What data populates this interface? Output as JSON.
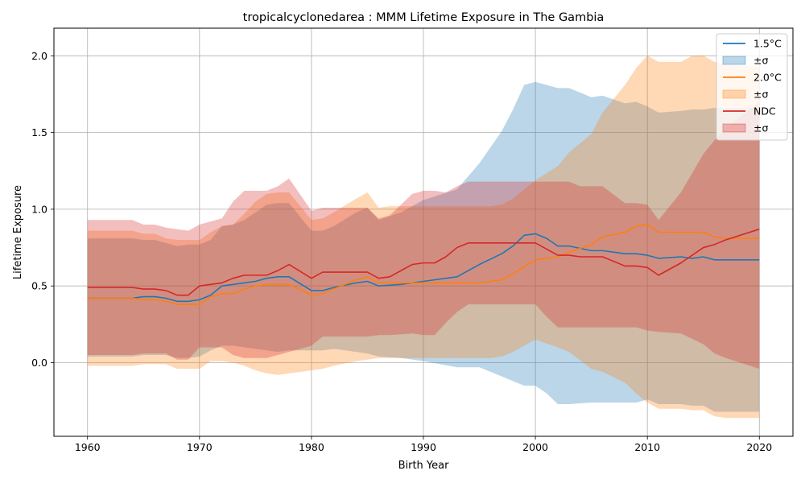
{
  "chart_data": {
    "type": "line",
    "title": "tropicalcyclonedarea : MMM Lifetime Exposure in The Gambia",
    "xlabel": "Birth Year",
    "ylabel": "Lifetime Exposure",
    "xlim": [
      1957,
      2023
    ],
    "ylim": [
      -0.48,
      2.18
    ],
    "xticks": [
      1960,
      1970,
      1980,
      1990,
      2000,
      2010,
      2020
    ],
    "yticks": [
      0.0,
      0.5,
      1.0,
      1.5,
      2.0
    ],
    "xtick_labels": [
      "1960",
      "1970",
      "1980",
      "1990",
      "2000",
      "2010",
      "2020"
    ],
    "ytick_labels": [
      "0.0",
      "0.5",
      "1.0",
      "1.5",
      "2.0"
    ],
    "grid": true,
    "legend_position": "top-right",
    "series": [
      {
        "name": "1.5°C",
        "band_label": "±σ",
        "color": "#1f77b4",
        "x": [
          1960,
          1964,
          1965,
          1966,
          1967,
          1968,
          1969,
          1970,
          1971,
          1972,
          1973,
          1974,
          1975,
          1976,
          1977,
          1978,
          1980,
          1981,
          1982,
          1984,
          1985,
          1986,
          1988,
          1990,
          1993,
          1995,
          1997,
          1998,
          1999,
          2000,
          2001,
          2002,
          2003,
          2005,
          2006,
          2008,
          2009,
          2010,
          2011,
          2013,
          2014,
          2015,
          2016,
          2020
        ],
        "mean": [
          0.42,
          0.42,
          0.43,
          0.43,
          0.42,
          0.4,
          0.4,
          0.41,
          0.44,
          0.5,
          0.51,
          0.52,
          0.53,
          0.55,
          0.56,
          0.56,
          0.47,
          0.47,
          0.49,
          0.52,
          0.53,
          0.5,
          0.51,
          0.53,
          0.56,
          0.64,
          0.71,
          0.76,
          0.83,
          0.84,
          0.81,
          0.76,
          0.76,
          0.73,
          0.73,
          0.71,
          0.71,
          0.7,
          0.68,
          0.69,
          0.68,
          0.69,
          0.67,
          0.67
        ],
        "upper": [
          0.81,
          0.81,
          0.8,
          0.8,
          0.78,
          0.76,
          0.77,
          0.77,
          0.8,
          0.89,
          0.9,
          0.93,
          0.98,
          1.03,
          1.04,
          1.04,
          0.86,
          0.86,
          0.89,
          0.98,
          1.01,
          0.93,
          0.98,
          1.06,
          1.13,
          1.3,
          1.51,
          1.65,
          1.81,
          1.83,
          1.81,
          1.79,
          1.79,
          1.73,
          1.74,
          1.69,
          1.7,
          1.67,
          1.63,
          1.64,
          1.65,
          1.65,
          1.66,
          1.66
        ],
        "lower": [
          0.04,
          0.04,
          0.05,
          0.05,
          0.05,
          0.03,
          0.03,
          0.04,
          0.08,
          0.11,
          0.11,
          0.1,
          0.09,
          0.08,
          0.07,
          0.08,
          0.08,
          0.08,
          0.09,
          0.07,
          0.06,
          0.04,
          0.03,
          0.01,
          -0.03,
          -0.03,
          -0.09,
          -0.12,
          -0.15,
          -0.15,
          -0.2,
          -0.27,
          -0.27,
          -0.26,
          -0.26,
          -0.26,
          -0.26,
          -0.24,
          -0.27,
          -0.27,
          -0.28,
          -0.28,
          -0.32,
          -0.32
        ]
      },
      {
        "name": "2.0°C",
        "band_label": "±σ",
        "color": "#ff7f0e",
        "x": [
          1960,
          1964,
          1965,
          1966,
          1967,
          1968,
          1969,
          1970,
          1971,
          1972,
          1973,
          1974,
          1975,
          1976,
          1977,
          1978,
          1980,
          1981,
          1982,
          1984,
          1985,
          1986,
          1987,
          1990,
          1993,
          1995,
          1996,
          1997,
          1998,
          2000,
          2002,
          2003,
          2005,
          2006,
          2008,
          2009,
          2010,
          2011,
          2013,
          2014,
          2015,
          2016,
          2017,
          2020
        ],
        "mean": [
          0.42,
          0.42,
          0.41,
          0.41,
          0.4,
          0.38,
          0.38,
          0.38,
          0.43,
          0.45,
          0.45,
          0.48,
          0.5,
          0.51,
          0.51,
          0.51,
          0.44,
          0.45,
          0.48,
          0.54,
          0.56,
          0.52,
          0.52,
          0.52,
          0.52,
          0.52,
          0.53,
          0.54,
          0.58,
          0.67,
          0.69,
          0.72,
          0.77,
          0.82,
          0.85,
          0.89,
          0.9,
          0.85,
          0.85,
          0.85,
          0.85,
          0.82,
          0.81,
          0.81
        ],
        "upper": [
          0.86,
          0.86,
          0.84,
          0.84,
          0.81,
          0.8,
          0.8,
          0.8,
          0.85,
          0.89,
          0.9,
          0.97,
          1.05,
          1.1,
          1.11,
          1.11,
          0.93,
          0.94,
          0.98,
          1.07,
          1.11,
          1.01,
          1.02,
          1.02,
          1.02,
          1.02,
          1.02,
          1.03,
          1.07,
          1.19,
          1.28,
          1.37,
          1.49,
          1.63,
          1.81,
          1.92,
          2.0,
          1.96,
          1.96,
          2.0,
          2.0,
          1.96,
          1.94,
          1.93
        ],
        "lower": [
          -0.02,
          -0.02,
          -0.01,
          -0.01,
          -0.01,
          -0.04,
          -0.04,
          -0.04,
          0.01,
          0.01,
          0.0,
          -0.02,
          -0.05,
          -0.07,
          -0.08,
          -0.07,
          -0.05,
          -0.04,
          -0.02,
          0.01,
          0.02,
          0.03,
          0.03,
          0.03,
          0.03,
          0.03,
          0.03,
          0.04,
          0.07,
          0.15,
          0.1,
          0.07,
          -0.04,
          -0.06,
          -0.13,
          -0.2,
          -0.26,
          -0.3,
          -0.3,
          -0.31,
          -0.31,
          -0.35,
          -0.36,
          -0.36
        ]
      },
      {
        "name": "NDC",
        "band_label": "±σ",
        "color": "#d62728",
        "x": [
          1960,
          1964,
          1965,
          1966,
          1967,
          1968,
          1969,
          1970,
          1971,
          1972,
          1973,
          1974,
          1975,
          1976,
          1977,
          1978,
          1980,
          1981,
          1982,
          1984,
          1985,
          1986,
          1987,
          1989,
          1990,
          1991,
          1992,
          1993,
          1994,
          1995,
          2000,
          2001,
          2002,
          2003,
          2004,
          2005,
          2006,
          2008,
          2009,
          2010,
          2011,
          2013,
          2015,
          2016,
          2017,
          2020
        ],
        "mean": [
          0.49,
          0.49,
          0.48,
          0.48,
          0.47,
          0.44,
          0.44,
          0.5,
          0.51,
          0.52,
          0.55,
          0.57,
          0.57,
          0.57,
          0.6,
          0.64,
          0.55,
          0.59,
          0.59,
          0.59,
          0.59,
          0.55,
          0.56,
          0.64,
          0.65,
          0.65,
          0.69,
          0.75,
          0.78,
          0.78,
          0.78,
          0.74,
          0.7,
          0.7,
          0.69,
          0.69,
          0.69,
          0.63,
          0.63,
          0.62,
          0.57,
          0.65,
          0.75,
          0.77,
          0.8,
          0.87
        ],
        "upper": [
          0.93,
          0.93,
          0.9,
          0.9,
          0.88,
          0.87,
          0.86,
          0.9,
          0.92,
          0.94,
          1.05,
          1.12,
          1.12,
          1.12,
          1.15,
          1.2,
          0.99,
          1.01,
          1.01,
          1.01,
          1.01,
          0.94,
          0.96,
          1.1,
          1.12,
          1.12,
          1.11,
          1.15,
          1.18,
          1.18,
          1.18,
          1.18,
          1.18,
          1.18,
          1.15,
          1.15,
          1.15,
          1.04,
          1.04,
          1.03,
          0.93,
          1.11,
          1.36,
          1.45,
          1.53,
          1.7
        ],
        "lower": [
          0.05,
          0.05,
          0.06,
          0.06,
          0.06,
          0.02,
          0.02,
          0.1,
          0.1,
          0.1,
          0.05,
          0.03,
          0.03,
          0.03,
          0.05,
          0.07,
          0.11,
          0.17,
          0.17,
          0.17,
          0.17,
          0.18,
          0.18,
          0.19,
          0.18,
          0.18,
          0.26,
          0.33,
          0.38,
          0.38,
          0.38,
          0.3,
          0.23,
          0.23,
          0.23,
          0.23,
          0.23,
          0.23,
          0.23,
          0.21,
          0.2,
          0.19,
          0.12,
          0.06,
          0.03,
          -0.04
        ]
      }
    ]
  }
}
